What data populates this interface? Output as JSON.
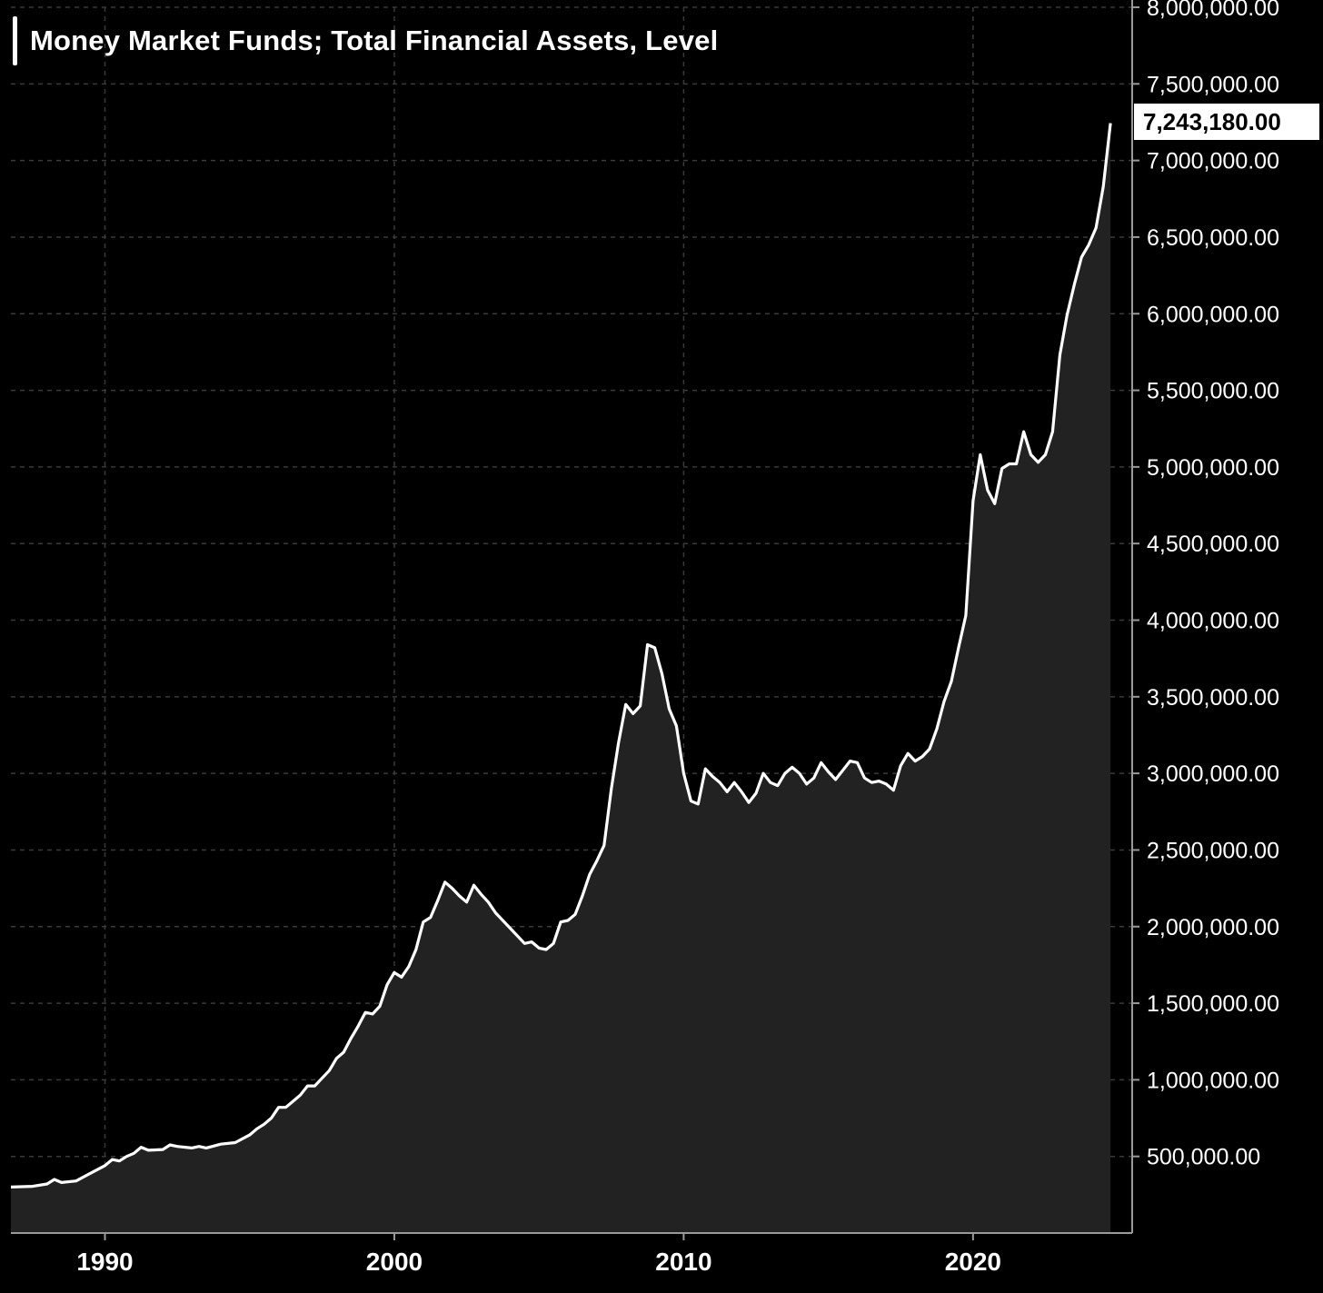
{
  "chart_data": {
    "type": "area",
    "title": "Money Market Funds; Total Financial Assets, Level",
    "last_value_label": "7,243,180.00",
    "xlabel": "",
    "ylabel": "",
    "xlim": [
      1986.75,
      2025.5
    ],
    "ylim": [
      0,
      8000000
    ],
    "grid": true,
    "x_ticks": [
      1990,
      2000,
      2010,
      2020
    ],
    "x_tick_labels": [
      "1990",
      "2000",
      "2010",
      "2020"
    ],
    "y_ticks": [
      500000,
      1000000,
      1500000,
      2000000,
      2500000,
      3000000,
      3500000,
      4000000,
      4500000,
      5000000,
      5500000,
      6000000,
      6500000,
      7000000,
      7500000,
      8000000
    ],
    "y_tick_labels": [
      "500,000.00",
      "1,000,000.00",
      "1,500,000.00",
      "2,000,000.00",
      "2,500,000.00",
      "3,000,000.00",
      "3,500,000.00",
      "4,000,000.00",
      "4,500,000.00",
      "5,000,000.00",
      "5,500,000.00",
      "6,000,000.00",
      "6,500,000.00",
      "7,000,000.00",
      "7,500,000.00",
      "8,000,000.00"
    ],
    "colors": {
      "background": "#000000",
      "line": "#ffffff",
      "area": "#222222",
      "grid": "#3a3a3a"
    },
    "series": [
      {
        "points": [
          [
            1986.75,
            300000
          ],
          [
            1987.5,
            305000
          ],
          [
            1988.0,
            320000
          ],
          [
            1988.25,
            350000
          ],
          [
            1988.5,
            330000
          ],
          [
            1989.0,
            340000
          ],
          [
            1989.5,
            390000
          ],
          [
            1990.0,
            440000
          ],
          [
            1990.25,
            480000
          ],
          [
            1990.5,
            470000
          ],
          [
            1990.75,
            500000
          ],
          [
            1991.0,
            520000
          ],
          [
            1991.25,
            560000
          ],
          [
            1991.5,
            540000
          ],
          [
            1992.0,
            545000
          ],
          [
            1992.25,
            575000
          ],
          [
            1992.5,
            565000
          ],
          [
            1993.0,
            555000
          ],
          [
            1993.25,
            565000
          ],
          [
            1993.5,
            555000
          ],
          [
            1994.0,
            580000
          ],
          [
            1994.5,
            590000
          ],
          [
            1995.0,
            640000
          ],
          [
            1995.25,
            680000
          ],
          [
            1995.5,
            710000
          ],
          [
            1995.75,
            750000
          ],
          [
            1996.0,
            820000
          ],
          [
            1996.25,
            820000
          ],
          [
            1996.5,
            860000
          ],
          [
            1996.75,
            900000
          ],
          [
            1997.0,
            960000
          ],
          [
            1997.25,
            960000
          ],
          [
            1997.5,
            1010000
          ],
          [
            1997.75,
            1060000
          ],
          [
            1998.0,
            1140000
          ],
          [
            1998.25,
            1180000
          ],
          [
            1998.5,
            1270000
          ],
          [
            1998.75,
            1350000
          ],
          [
            1999.0,
            1440000
          ],
          [
            1999.25,
            1430000
          ],
          [
            1999.5,
            1480000
          ],
          [
            1999.75,
            1620000
          ],
          [
            2000.0,
            1700000
          ],
          [
            2000.25,
            1670000
          ],
          [
            2000.5,
            1740000
          ],
          [
            2000.75,
            1850000
          ],
          [
            2001.0,
            2030000
          ],
          [
            2001.25,
            2060000
          ],
          [
            2001.5,
            2170000
          ],
          [
            2001.75,
            2290000
          ],
          [
            2002.0,
            2250000
          ],
          [
            2002.25,
            2200000
          ],
          [
            2002.5,
            2160000
          ],
          [
            2002.75,
            2270000
          ],
          [
            2003.0,
            2210000
          ],
          [
            2003.25,
            2160000
          ],
          [
            2003.5,
            2090000
          ],
          [
            2004.0,
            1990000
          ],
          [
            2004.5,
            1890000
          ],
          [
            2004.75,
            1900000
          ],
          [
            2005.0,
            1860000
          ],
          [
            2005.25,
            1850000
          ],
          [
            2005.5,
            1890000
          ],
          [
            2005.75,
            2030000
          ],
          [
            2006.0,
            2040000
          ],
          [
            2006.25,
            2080000
          ],
          [
            2006.5,
            2200000
          ],
          [
            2006.75,
            2340000
          ],
          [
            2007.0,
            2430000
          ],
          [
            2007.25,
            2530000
          ],
          [
            2007.5,
            2900000
          ],
          [
            2007.75,
            3200000
          ],
          [
            2008.0,
            3450000
          ],
          [
            2008.25,
            3390000
          ],
          [
            2008.5,
            3440000
          ],
          [
            2008.75,
            3840000
          ],
          [
            2009.0,
            3820000
          ],
          [
            2009.25,
            3650000
          ],
          [
            2009.5,
            3420000
          ],
          [
            2009.75,
            3310000
          ],
          [
            2010.0,
            3000000
          ],
          [
            2010.25,
            2820000
          ],
          [
            2010.5,
            2800000
          ],
          [
            2010.75,
            3030000
          ],
          [
            2011.0,
            2980000
          ],
          [
            2011.25,
            2940000
          ],
          [
            2011.5,
            2880000
          ],
          [
            2011.75,
            2940000
          ],
          [
            2012.0,
            2880000
          ],
          [
            2012.25,
            2810000
          ],
          [
            2012.5,
            2870000
          ],
          [
            2012.75,
            3000000
          ],
          [
            2013.0,
            2940000
          ],
          [
            2013.25,
            2920000
          ],
          [
            2013.5,
            3000000
          ],
          [
            2013.75,
            3040000
          ],
          [
            2014.0,
            3000000
          ],
          [
            2014.25,
            2930000
          ],
          [
            2014.5,
            2970000
          ],
          [
            2014.75,
            3070000
          ],
          [
            2015.0,
            3010000
          ],
          [
            2015.25,
            2960000
          ],
          [
            2015.5,
            3020000
          ],
          [
            2015.75,
            3080000
          ],
          [
            2016.0,
            3070000
          ],
          [
            2016.25,
            2970000
          ],
          [
            2016.5,
            2940000
          ],
          [
            2016.75,
            2950000
          ],
          [
            2017.0,
            2930000
          ],
          [
            2017.25,
            2890000
          ],
          [
            2017.5,
            3050000
          ],
          [
            2017.75,
            3130000
          ],
          [
            2018.0,
            3080000
          ],
          [
            2018.25,
            3110000
          ],
          [
            2018.5,
            3160000
          ],
          [
            2018.75,
            3290000
          ],
          [
            2019.0,
            3470000
          ],
          [
            2019.25,
            3600000
          ],
          [
            2019.5,
            3820000
          ],
          [
            2019.75,
            4030000
          ],
          [
            2020.0,
            4780000
          ],
          [
            2020.25,
            5080000
          ],
          [
            2020.5,
            4850000
          ],
          [
            2020.75,
            4760000
          ],
          [
            2021.0,
            4990000
          ],
          [
            2021.25,
            5020000
          ],
          [
            2021.5,
            5020000
          ],
          [
            2021.75,
            5230000
          ],
          [
            2022.0,
            5080000
          ],
          [
            2022.25,
            5030000
          ],
          [
            2022.5,
            5080000
          ],
          [
            2022.75,
            5230000
          ],
          [
            2023.0,
            5730000
          ],
          [
            2023.25,
            5990000
          ],
          [
            2023.5,
            6190000
          ],
          [
            2023.75,
            6370000
          ],
          [
            2024.0,
            6450000
          ],
          [
            2024.25,
            6560000
          ],
          [
            2024.5,
            6830000
          ],
          [
            2024.75,
            7243180
          ]
        ]
      }
    ]
  }
}
